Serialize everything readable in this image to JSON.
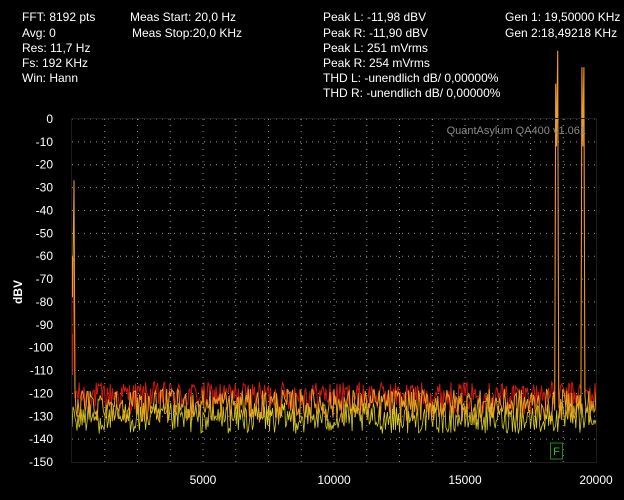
{
  "info": {
    "fft": "FFT: 8192 pts",
    "avg": "Avg: 0",
    "res": "Res: 11,7 Hz",
    "fs": "Fs: 192 KHz",
    "win": "Win: Hann",
    "meas_start": "Meas Start: 20,0 Hz",
    "meas_stop": "Meas Stop:20,0 KHz",
    "peak_l_dbv": "Peak L: -11,98 dBV",
    "peak_r_dbv": "Peak R: -11,90 dBV",
    "peak_l_rms": "Peak L: 251 mVrms",
    "peak_r_rms": "Peak R: 254 mVrms",
    "thd_l": "THD L: -unendlich dB/ 0,00000%",
    "thd_r": "THD R: -unendlich dB/ 0,00000%",
    "gen1": "Gen 1: 19,50000 KHz",
    "gen2": "Gen 2:18,49218 KHz"
  },
  "watermark": "QuantAsylum QA400 v1.061",
  "marker_label": "F",
  "colors": {
    "background": "#000000",
    "grid": "#bdbdbd",
    "left_channel": "#e8a020",
    "right_channel": "#cc1a10",
    "noise_yellow": "#d8d020",
    "marker": "#1a8a1a"
  },
  "chart_data": {
    "type": "line",
    "title": "",
    "xlabel": "",
    "ylabel": "dBV",
    "xlim": [
      0,
      20000
    ],
    "ylim": [
      -150,
      0
    ],
    "x_ticks": [
      5000,
      10000,
      15000,
      20000
    ],
    "y_ticks": [
      0,
      -10,
      -20,
      -30,
      -40,
      -50,
      -60,
      -70,
      -80,
      -90,
      -100,
      -110,
      -120,
      -130,
      -140,
      -150
    ],
    "grid": true,
    "series": [
      {
        "noise_floor_range": [
          -141,
          -118
        ],
        "peaks": [
          {
            "x": 20,
            "y": -78
          },
          {
            "x": 18492,
            "y": -12
          },
          {
            "x": 19500,
            "y": -12
          }
        ]
      },
      {
        "noise_floor_range": [
          -137,
          -115
        ],
        "peaks": [
          {
            "x": 20,
            "y": -112
          },
          {
            "x": 18492,
            "y": -12
          },
          {
            "x": 19500,
            "y": -12
          }
        ]
      }
    ],
    "marker": {
      "x": 18492,
      "y": -150
    }
  }
}
